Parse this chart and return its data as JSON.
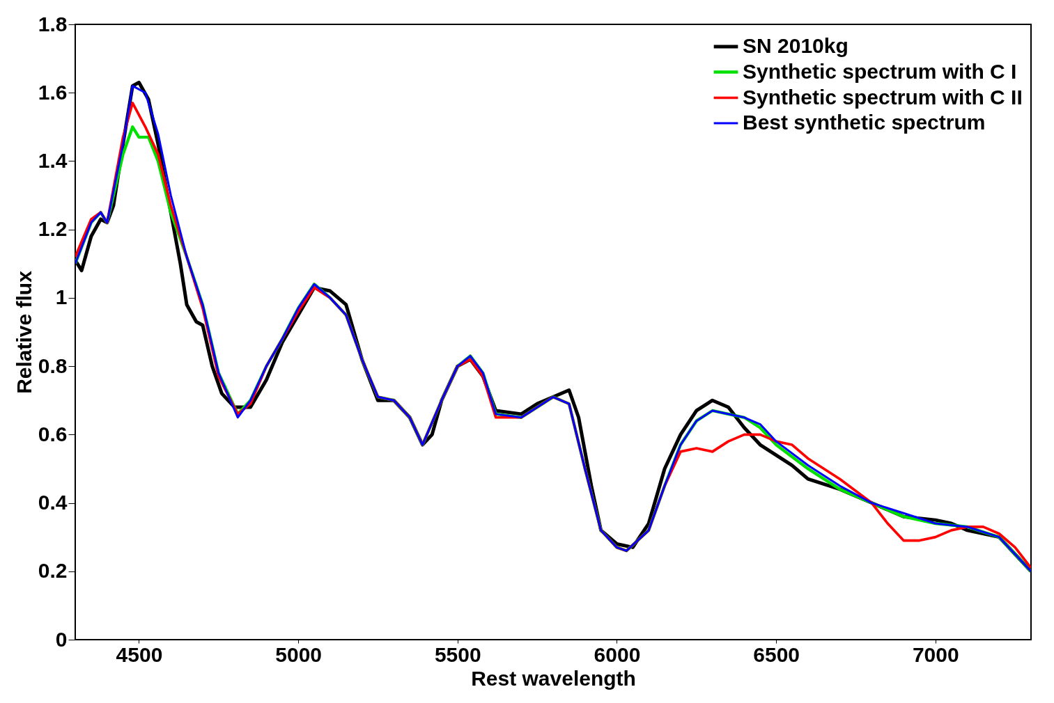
{
  "chart_data": {
    "type": "line",
    "xlabel": "Rest wavelength",
    "ylabel": "Relative flux",
    "xlim": [
      4300,
      7300
    ],
    "xticks": [
      4500,
      5000,
      5500,
      6000,
      6500,
      7000
    ],
    "ylim": [
      0,
      1.8
    ],
    "yticks": [
      0,
      0.2,
      0.4,
      0.6,
      0.8,
      1,
      1.2,
      1.4,
      1.6,
      1.8
    ],
    "grid": false,
    "legend": "top right",
    "marker": "none",
    "line_style": "solid",
    "series": [
      {
        "name": "SN 2010kg",
        "color": "#000000",
        "x": [
          4300,
          4320,
          4350,
          4380,
          4400,
          4420,
          4450,
          4480,
          4500,
          4530,
          4560,
          4600,
          4630,
          4650,
          4680,
          4700,
          4730,
          4760,
          4800,
          4850,
          4900,
          4950,
          5000,
          5050,
          5100,
          5150,
          5200,
          5250,
          5300,
          5350,
          5390,
          5420,
          5450,
          5500,
          5540,
          5580,
          5620,
          5700,
          5750,
          5800,
          5850,
          5880,
          5920,
          5950,
          6000,
          6050,
          6100,
          6150,
          6200,
          6250,
          6300,
          6350,
          6400,
          6450,
          6500,
          6550,
          6600,
          6700,
          6800,
          6900,
          7000,
          7050,
          7100,
          7200,
          7250,
          7300
        ],
        "values": [
          1.11,
          1.08,
          1.18,
          1.23,
          1.22,
          1.27,
          1.45,
          1.62,
          1.63,
          1.58,
          1.45,
          1.25,
          1.1,
          0.98,
          0.93,
          0.92,
          0.8,
          0.72,
          0.68,
          0.68,
          0.76,
          0.87,
          0.95,
          1.03,
          1.02,
          0.98,
          0.82,
          0.7,
          0.7,
          0.65,
          0.57,
          0.6,
          0.7,
          0.8,
          0.82,
          0.77,
          0.67,
          0.66,
          0.69,
          0.71,
          0.73,
          0.65,
          0.45,
          0.32,
          0.28,
          0.27,
          0.34,
          0.5,
          0.6,
          0.67,
          0.7,
          0.68,
          0.62,
          0.57,
          0.54,
          0.51,
          0.47,
          0.44,
          0.4,
          0.36,
          0.35,
          0.34,
          0.32,
          0.3,
          0.25,
          0.2
        ]
      },
      {
        "name": "Synthetic spectrum with C I",
        "color": "#00e000",
        "x": [
          4300,
          4350,
          4380,
          4400,
          4450,
          4480,
          4500,
          4530,
          4560,
          4600,
          4650,
          4700,
          4750,
          4810,
          4850,
          4900,
          4950,
          5000,
          5050,
          5100,
          5150,
          5200,
          5250,
          5300,
          5350,
          5390,
          5450,
          5500,
          5540,
          5580,
          5620,
          5700,
          5800,
          5850,
          5900,
          5950,
          6000,
          6030,
          6100,
          6150,
          6200,
          6250,
          6300,
          6400,
          6450,
          6500,
          6600,
          6700,
          6800,
          6900,
          7000,
          7100,
          7200,
          7300
        ],
        "values": [
          1.1,
          1.22,
          1.25,
          1.22,
          1.42,
          1.5,
          1.47,
          1.47,
          1.4,
          1.25,
          1.12,
          0.98,
          0.78,
          0.66,
          0.7,
          0.8,
          0.88,
          0.97,
          1.04,
          1.0,
          0.95,
          0.82,
          0.71,
          0.7,
          0.65,
          0.57,
          0.7,
          0.8,
          0.83,
          0.78,
          0.66,
          0.65,
          0.71,
          0.69,
          0.5,
          0.32,
          0.27,
          0.26,
          0.32,
          0.45,
          0.57,
          0.64,
          0.67,
          0.65,
          0.62,
          0.57,
          0.5,
          0.44,
          0.4,
          0.36,
          0.34,
          0.33,
          0.3,
          0.2
        ]
      },
      {
        "name": "Synthetic spectrum with C II",
        "color": "#ff0000",
        "x": [
          4300,
          4350,
          4380,
          4400,
          4450,
          4480,
          4520,
          4560,
          4600,
          4650,
          4700,
          4750,
          4810,
          4850,
          4900,
          4950,
          5000,
          5050,
          5100,
          5150,
          5200,
          5250,
          5300,
          5350,
          5390,
          5450,
          5500,
          5540,
          5580,
          5620,
          5700,
          5800,
          5850,
          5900,
          5950,
          6000,
          6030,
          6100,
          6150,
          6200,
          6250,
          6300,
          6350,
          6400,
          6450,
          6500,
          6550,
          6600,
          6700,
          6800,
          6850,
          6900,
          6950,
          7000,
          7050,
          7100,
          7150,
          7200,
          7250,
          7300
        ],
        "values": [
          1.12,
          1.23,
          1.25,
          1.22,
          1.47,
          1.57,
          1.5,
          1.42,
          1.27,
          1.12,
          0.97,
          0.77,
          0.66,
          0.69,
          0.8,
          0.88,
          0.96,
          1.03,
          1.0,
          0.95,
          0.82,
          0.71,
          0.7,
          0.65,
          0.57,
          0.7,
          0.8,
          0.82,
          0.77,
          0.65,
          0.65,
          0.71,
          0.69,
          0.5,
          0.32,
          0.27,
          0.26,
          0.32,
          0.45,
          0.55,
          0.56,
          0.55,
          0.58,
          0.6,
          0.6,
          0.58,
          0.57,
          0.53,
          0.47,
          0.4,
          0.34,
          0.29,
          0.29,
          0.3,
          0.32,
          0.33,
          0.33,
          0.31,
          0.27,
          0.21
        ]
      },
      {
        "name": "Best synthetic spectrum",
        "color": "#0000ff",
        "x": [
          4300,
          4350,
          4380,
          4400,
          4450,
          4480,
          4520,
          4560,
          4600,
          4650,
          4700,
          4750,
          4810,
          4850,
          4900,
          4950,
          5000,
          5050,
          5100,
          5150,
          5200,
          5250,
          5300,
          5350,
          5390,
          5450,
          5500,
          5540,
          5580,
          5620,
          5700,
          5800,
          5850,
          5900,
          5950,
          6000,
          6030,
          6100,
          6150,
          6200,
          6250,
          6300,
          6400,
          6450,
          6500,
          6600,
          6700,
          6800,
          6900,
          7000,
          7100,
          7200,
          7300
        ],
        "values": [
          1.1,
          1.22,
          1.25,
          1.22,
          1.45,
          1.62,
          1.6,
          1.48,
          1.3,
          1.12,
          0.98,
          0.78,
          0.65,
          0.7,
          0.8,
          0.88,
          0.97,
          1.04,
          1.0,
          0.95,
          0.82,
          0.71,
          0.7,
          0.65,
          0.57,
          0.7,
          0.8,
          0.83,
          0.78,
          0.66,
          0.65,
          0.71,
          0.69,
          0.5,
          0.32,
          0.27,
          0.26,
          0.32,
          0.45,
          0.57,
          0.64,
          0.67,
          0.65,
          0.63,
          0.58,
          0.51,
          0.45,
          0.4,
          0.37,
          0.34,
          0.33,
          0.3,
          0.2
        ]
      }
    ]
  }
}
